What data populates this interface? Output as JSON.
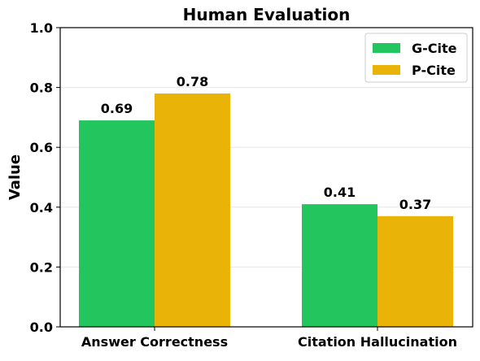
{
  "chart_data": {
    "type": "bar",
    "title": "Human Evaluation",
    "xlabel": "",
    "ylabel": "Value",
    "categories": [
      "Answer Correctness",
      "Citation Hallucination"
    ],
    "series": [
      {
        "name": "G-Cite",
        "values": [
          0.69,
          0.41
        ],
        "color": "#22c55e"
      },
      {
        "name": "P-Cite",
        "values": [
          0.78,
          0.37
        ],
        "color": "#eab308"
      }
    ],
    "value_labels": [
      [
        "0.69",
        "0.41"
      ],
      [
        "0.78",
        "0.37"
      ]
    ],
    "ylim": [
      0,
      1.0
    ],
    "yticks": [
      0.0,
      0.2,
      0.4,
      0.6,
      0.8,
      1.0
    ],
    "ytick_labels": [
      "0.0",
      "0.2",
      "0.4",
      "0.6",
      "0.8",
      "1.0"
    ],
    "grid": true,
    "grid_color": "#e6e6e6",
    "legend_position": "top-right"
  }
}
